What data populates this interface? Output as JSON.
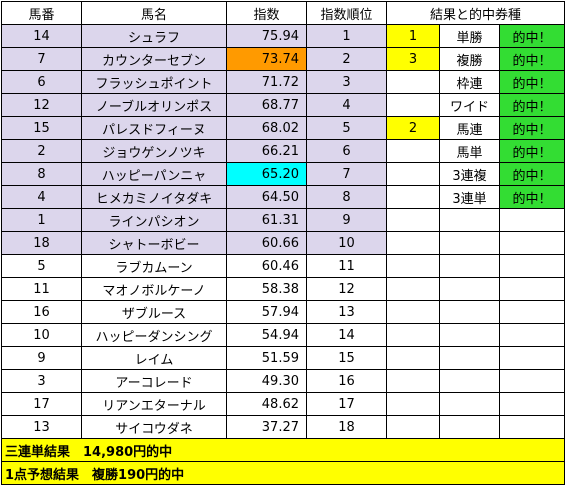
{
  "headers": {
    "umaban": "馬番",
    "name": "馬名",
    "index": "指数",
    "rank": "指数順位",
    "result": "結果と的中券種"
  },
  "rows": [
    {
      "umaban": "14",
      "name": "シュラフ",
      "index": "75.94",
      "rank": "1",
      "finish": "1",
      "bet": "単勝",
      "hit": "的中！"
    },
    {
      "umaban": "7",
      "name": "カウンターセブン",
      "index": "73.74",
      "rank": "2",
      "finish": "3",
      "bet": "複勝",
      "hit": "的中！"
    },
    {
      "umaban": "6",
      "name": "フラッシュポイント",
      "index": "71.72",
      "rank": "3",
      "finish": "",
      "bet": "枠連",
      "hit": "的中！"
    },
    {
      "umaban": "12",
      "name": "ノーブルオリンポス",
      "index": "68.77",
      "rank": "4",
      "finish": "",
      "bet": "ワイド",
      "hit": "的中！"
    },
    {
      "umaban": "15",
      "name": "パレスドフィーヌ",
      "index": "68.02",
      "rank": "5",
      "finish": "2",
      "bet": "馬連",
      "hit": "的中！"
    },
    {
      "umaban": "2",
      "name": "ジョウゲンノツキ",
      "index": "66.21",
      "rank": "6",
      "finish": "",
      "bet": "馬単",
      "hit": "的中！"
    },
    {
      "umaban": "8",
      "name": "ハッピーパンニャ",
      "index": "65.20",
      "rank": "7",
      "finish": "",
      "bet": "3連複",
      "hit": "的中！"
    },
    {
      "umaban": "4",
      "name": "ヒメカミノイタダキ",
      "index": "64.50",
      "rank": "8",
      "finish": "",
      "bet": "3連単",
      "hit": "的中！"
    },
    {
      "umaban": "1",
      "name": "ラインパシオン",
      "index": "61.31",
      "rank": "9",
      "finish": "",
      "bet": "",
      "hit": ""
    },
    {
      "umaban": "18",
      "name": "シャトーボビー",
      "index": "60.66",
      "rank": "10",
      "finish": "",
      "bet": "",
      "hit": ""
    },
    {
      "umaban": "5",
      "name": "ラブカムーン",
      "index": "60.46",
      "rank": "11",
      "finish": "",
      "bet": "",
      "hit": ""
    },
    {
      "umaban": "11",
      "name": "マオノボルケーノ",
      "index": "58.38",
      "rank": "12",
      "finish": "",
      "bet": "",
      "hit": ""
    },
    {
      "umaban": "16",
      "name": "ザブルース",
      "index": "57.94",
      "rank": "13",
      "finish": "",
      "bet": "",
      "hit": ""
    },
    {
      "umaban": "10",
      "name": "ハッピーダンシング",
      "index": "54.94",
      "rank": "14",
      "finish": "",
      "bet": "",
      "hit": ""
    },
    {
      "umaban": "9",
      "name": "レイム",
      "index": "51.59",
      "rank": "15",
      "finish": "",
      "bet": "",
      "hit": ""
    },
    {
      "umaban": "3",
      "name": "アーコレード",
      "index": "49.30",
      "rank": "16",
      "finish": "",
      "bet": "",
      "hit": ""
    },
    {
      "umaban": "17",
      "name": "リアンエターナル",
      "index": "48.62",
      "rank": "17",
      "finish": "",
      "bet": "",
      "hit": ""
    },
    {
      "umaban": "13",
      "name": "サイコウダネ",
      "index": "37.27",
      "rank": "18",
      "finish": "",
      "bet": "",
      "hit": ""
    }
  ],
  "footer": {
    "line1": "三連単結果　14,980円的中",
    "line2": "1点予想結果　複勝190円的中"
  },
  "colors": {
    "top_ten_highlight": "#dcd6ec",
    "finish_highlight": "#ffff00",
    "hit_highlight": "#33dd33",
    "rank2_index": "#ff9a00",
    "rank7_index": "#00ffff",
    "footer": "#ffff00"
  }
}
